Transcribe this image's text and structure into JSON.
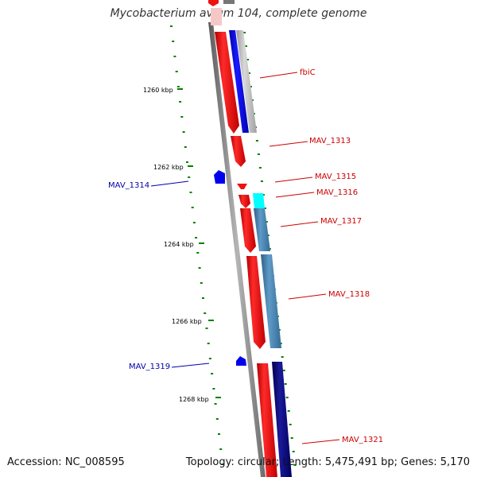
{
  "title": "Mycobacterium avium 104, complete genome",
  "footer": {
    "accession": "Accession: NC_008595",
    "summary": "Topology: circular; Length: 5,475,491 bp; Genes: 5,170"
  },
  "ticks": [
    {
      "label": "1260 kbp",
      "pos_kbp": 1260
    },
    {
      "label": "1262 kbp",
      "pos_kbp": 1262
    },
    {
      "label": "1264 kbp",
      "pos_kbp": 1264
    },
    {
      "label": "1266 kbp",
      "pos_kbp": 1266
    },
    {
      "label": "1268 kbp",
      "pos_kbp": 1268
    }
  ],
  "genes": [
    {
      "label": "fbiC",
      "strand": "+",
      "color": "#cc0000"
    },
    {
      "label": "MAV_1313",
      "strand": "+",
      "color": "#cc0000"
    },
    {
      "label": "MAV_1315",
      "strand": "+",
      "color": "#cc0000"
    },
    {
      "label": "MAV_1316",
      "strand": "+",
      "color": "#cc0000"
    },
    {
      "label": "MAV_1317",
      "strand": "+",
      "color": "#cc0000"
    },
    {
      "label": "MAV_1318",
      "strand": "+",
      "color": "#cc0000"
    },
    {
      "label": "MAV_1321",
      "strand": "+",
      "color": "#cc0000"
    },
    {
      "label": "MAV_1314",
      "strand": "-",
      "color": "#0000aa"
    },
    {
      "label": "MAV_1319",
      "strand": "-",
      "color": "#0000aa"
    }
  ],
  "colors": {
    "backbone": "#808080",
    "gene_red": "#ff0000",
    "gene_blue": "#0000ff",
    "gene_steelblue": "#4682b4",
    "gene_navy": "#000080",
    "gene_cyan": "#00ffff",
    "gene_silver": "#c0c0c0",
    "gc_green": "#008000"
  }
}
